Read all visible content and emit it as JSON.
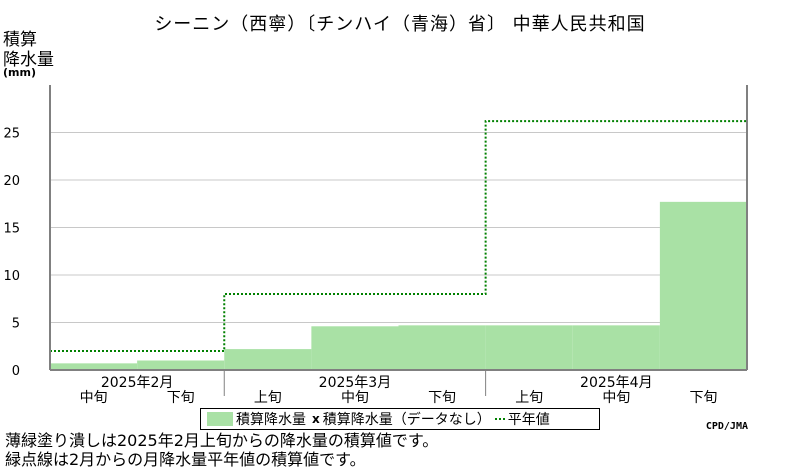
{
  "chart_data": {
    "type": "area",
    "title": "シーニン（西寧）〔チンハイ（青海）省〕 中華人民共和国",
    "ylabel_lines": [
      "積算",
      "降水量"
    ],
    "yunit": "(mm)",
    "ylim": [
      0,
      30
    ],
    "yticks": [
      0,
      5,
      10,
      15,
      20,
      25
    ],
    "grid": true,
    "periods": [
      "中旬",
      "下旬",
      "上旬",
      "中旬",
      "下旬",
      "上旬",
      "中旬",
      "下旬"
    ],
    "months": [
      "2025年2月",
      "2025年3月",
      "2025年4月"
    ],
    "series": [
      {
        "name": "積算降水量",
        "values": [
          0.7,
          1.0,
          2.2,
          4.6,
          4.7,
          4.7,
          4.7,
          17.7
        ]
      },
      {
        "name": "平年値",
        "values": [
          2.0,
          2.0,
          8.0,
          8.0,
          8.0,
          26.2,
          26.2,
          26.2
        ]
      }
    ]
  },
  "legend": {
    "item1": "積算降水量",
    "item2_mark": "x",
    "item2": "積算降水量（データなし）",
    "item3": "平年値"
  },
  "credit": "CPD/JMA",
  "notes": [
    "薄緑塗り潰しは2025年2月上旬からの降水量の積算値です。",
    "緑点線は2月からの月降水量平年値の積算値です。"
  ],
  "colors": {
    "fill": "#a9e1a5",
    "normal_line": "#008000",
    "grid": "#c8c8c8",
    "axis": "#808080"
  }
}
